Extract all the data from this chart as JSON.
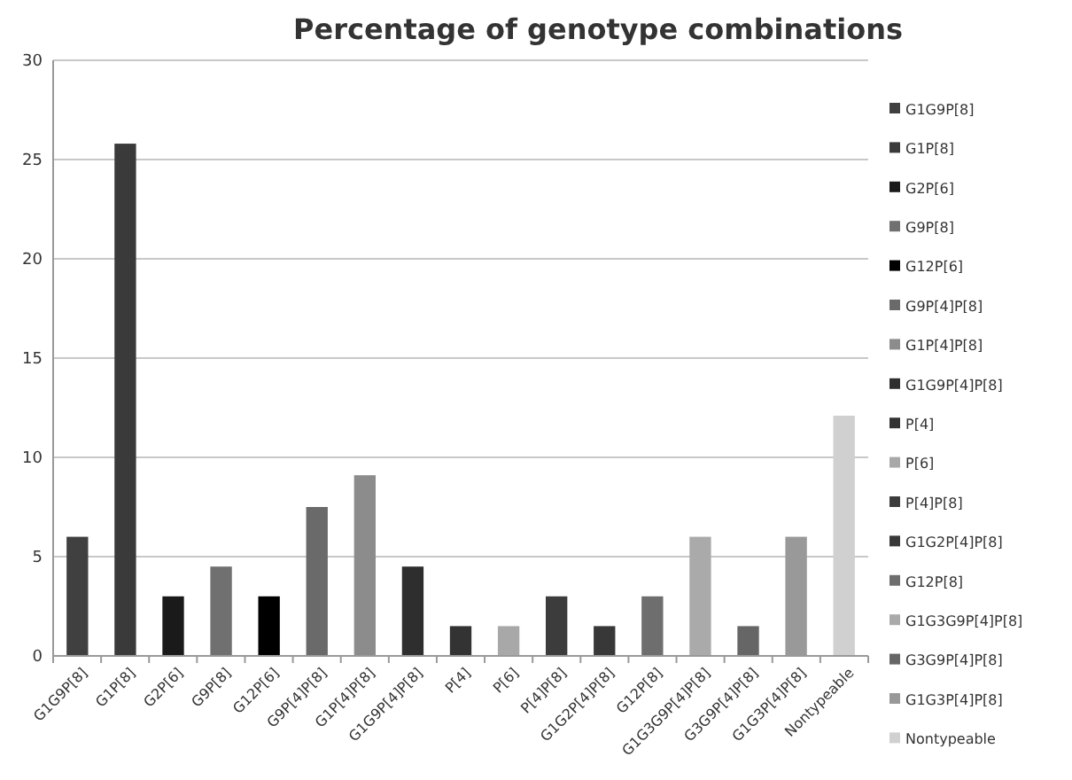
{
  "chart_data": {
    "type": "bar",
    "title": "Percentage of genotype combinations",
    "categories": [
      "G1G9P[8]",
      "G1P[8]",
      "G2P[6]",
      "G9P[8]",
      "G12P[6]",
      "G9P[4]P[8]",
      "G1P[4]P[8]",
      "G1G9P[4]P[8]",
      "P[4]",
      "P[6]",
      "P[4]P[8]",
      "G1G2P[4]P[8]",
      "G12P[8]",
      "G1G3G9P[4]P[8]",
      "G3G9P[4]P[8]",
      "G1G3P[4]P[8]",
      "Nontypeable"
    ],
    "series": [
      {
        "name": "G1G9P[8]",
        "color": "#404040",
        "values": [
          6,
          null,
          null,
          null,
          null,
          null,
          null,
          null,
          null,
          null,
          null,
          null,
          null,
          null,
          null,
          null,
          null
        ]
      },
      {
        "name": "G1P[8]",
        "color": "#3a3a3a",
        "values": [
          null,
          25.8,
          null,
          null,
          null,
          null,
          null,
          null,
          null,
          null,
          null,
          null,
          null,
          null,
          null,
          null,
          null
        ]
      },
      {
        "name": "G2P[6]",
        "color": "#1a1a1a",
        "values": [
          null,
          null,
          3,
          null,
          null,
          null,
          null,
          null,
          null,
          null,
          null,
          null,
          null,
          null,
          null,
          null,
          null
        ]
      },
      {
        "name": "G9P[8]",
        "color": "#707070",
        "values": [
          null,
          null,
          null,
          4.5,
          null,
          null,
          null,
          null,
          null,
          null,
          null,
          null,
          null,
          null,
          null,
          null,
          null
        ]
      },
      {
        "name": "G12P[6]",
        "color": "#000000",
        "values": [
          null,
          null,
          null,
          null,
          3,
          null,
          null,
          null,
          null,
          null,
          null,
          null,
          null,
          null,
          null,
          null,
          null
        ]
      },
      {
        "name": "G9P[4]P[8]",
        "color": "#6a6a6a",
        "values": [
          null,
          null,
          null,
          null,
          null,
          7.5,
          null,
          null,
          null,
          null,
          null,
          null,
          null,
          null,
          null,
          null,
          null
        ]
      },
      {
        "name": "G1P[4]P[8]",
        "color": "#8c8c8c",
        "values": [
          null,
          null,
          null,
          null,
          null,
          null,
          9.1,
          null,
          null,
          null,
          null,
          null,
          null,
          null,
          null,
          null,
          null
        ]
      },
      {
        "name": "G1G9P[4]P[8]",
        "color": "#2e2e2e",
        "values": [
          null,
          null,
          null,
          null,
          null,
          null,
          null,
          4.5,
          null,
          null,
          null,
          null,
          null,
          null,
          null,
          null,
          null
        ]
      },
      {
        "name": "P[4]",
        "color": "#333333",
        "values": [
          null,
          null,
          null,
          null,
          null,
          null,
          null,
          null,
          1.5,
          null,
          null,
          null,
          null,
          null,
          null,
          null,
          null
        ]
      },
      {
        "name": "P[6]",
        "color": "#a8a8a8",
        "values": [
          null,
          null,
          null,
          null,
          null,
          null,
          null,
          null,
          null,
          1.5,
          null,
          null,
          null,
          null,
          null,
          null,
          null
        ]
      },
      {
        "name": "P[4]P[8]",
        "color": "#3c3c3c",
        "values": [
          null,
          null,
          null,
          null,
          null,
          null,
          null,
          null,
          null,
          null,
          3,
          null,
          null,
          null,
          null,
          null,
          null
        ]
      },
      {
        "name": "G1G2P[4]P[8]",
        "color": "#383838",
        "values": [
          null,
          null,
          null,
          null,
          null,
          null,
          null,
          null,
          null,
          null,
          null,
          1.5,
          null,
          null,
          null,
          null,
          null
        ]
      },
      {
        "name": "G12P[8]",
        "color": "#6e6e6e",
        "values": [
          null,
          null,
          null,
          null,
          null,
          null,
          null,
          null,
          null,
          null,
          null,
          null,
          3,
          null,
          null,
          null,
          null
        ]
      },
      {
        "name": "G1G3G9P[4]P[8]",
        "color": "#aaaaaa",
        "values": [
          null,
          null,
          null,
          null,
          null,
          null,
          null,
          null,
          null,
          null,
          null,
          null,
          null,
          6,
          null,
          null,
          null
        ]
      },
      {
        "name": "G3G9P[4]P[8]",
        "color": "#666666",
        "values": [
          null,
          null,
          null,
          null,
          null,
          null,
          null,
          null,
          null,
          null,
          null,
          null,
          null,
          null,
          1.5,
          null,
          null
        ]
      },
      {
        "name": "G1G3P[4]P[8]",
        "color": "#999999",
        "values": [
          null,
          null,
          null,
          null,
          null,
          null,
          null,
          null,
          null,
          null,
          null,
          null,
          null,
          null,
          null,
          6,
          null
        ]
      },
      {
        "name": "Nontypeable",
        "color": "#d0d0d0",
        "values": [
          null,
          null,
          null,
          null,
          null,
          null,
          null,
          null,
          null,
          null,
          null,
          null,
          null,
          null,
          null,
          null,
          12.1
        ]
      }
    ],
    "ylim": [
      0,
      30
    ],
    "yticks": [
      0,
      5,
      10,
      15,
      20,
      25,
      30
    ],
    "grid": "y",
    "legend": "right"
  }
}
